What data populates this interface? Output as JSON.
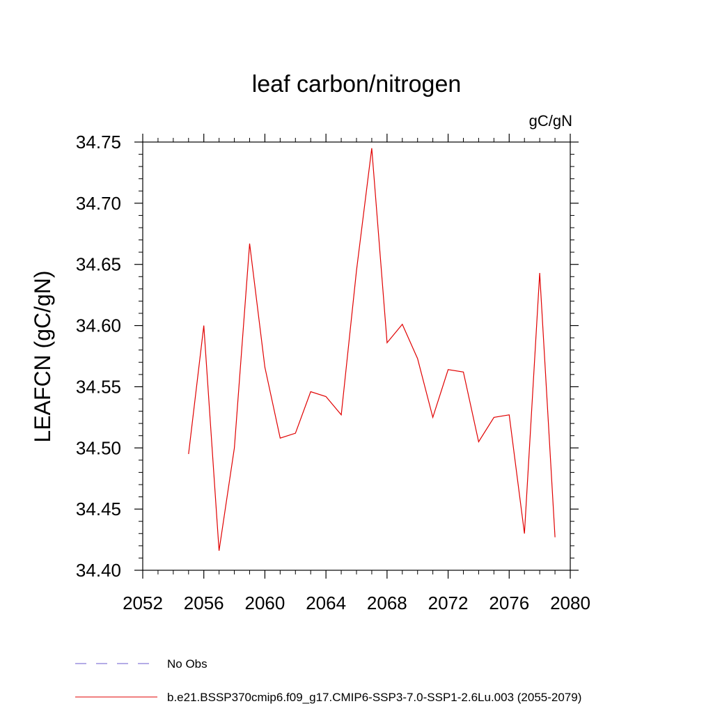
{
  "chart_data": {
    "type": "line",
    "title": "leaf carbon/nitrogen",
    "units": "gC/gN",
    "ylabel": "LEAFCN  (gC/gN)",
    "xlabel": "",
    "xlim": [
      2052,
      2080
    ],
    "ylim": [
      34.4,
      34.75
    ],
    "x_ticks": [
      2052,
      2056,
      2060,
      2064,
      2068,
      2072,
      2076,
      2080
    ],
    "x_tick_labels": [
      "2052",
      "2056",
      "2060",
      "2064",
      "2068",
      "2072",
      "2076",
      "2080"
    ],
    "y_ticks": [
      34.4,
      34.45,
      34.5,
      34.55,
      34.6,
      34.65,
      34.7,
      34.75
    ],
    "y_tick_labels": [
      "34.40",
      "34.45",
      "34.50",
      "34.55",
      "34.60",
      "34.65",
      "34.70",
      "34.75"
    ],
    "grid": false,
    "legend_position": "bottom",
    "legend": [
      {
        "label": "No Obs",
        "color": "#6a5acd",
        "style": "dashed"
      },
      {
        "label": "b.e21.BSSP370cmip6.f09_g17.CMIP6-SSP3-7.0-SSP1-2.6Lu.003 (2055-2079)",
        "color": "#e00000",
        "style": "solid"
      }
    ],
    "series": [
      {
        "name": "b.e21.BSSP370cmip6.f09_g17.CMIP6-SSP3-7.0-SSP1-2.6Lu.003 (2055-2079)",
        "color": "#e00000",
        "x": [
          2055,
          2056,
          2057,
          2058,
          2059,
          2060,
          2061,
          2062,
          2063,
          2064,
          2065,
          2066,
          2067,
          2068,
          2069,
          2070,
          2071,
          2072,
          2073,
          2074,
          2075,
          2076,
          2077,
          2078,
          2079
        ],
        "y": [
          34.495,
          34.6,
          34.416,
          34.5,
          34.667,
          34.566,
          34.508,
          34.512,
          34.546,
          34.542,
          34.527,
          34.645,
          34.745,
          34.586,
          34.601,
          34.573,
          34.525,
          34.564,
          34.562,
          34.505,
          34.525,
          34.527,
          34.43,
          34.643,
          34.427
        ]
      }
    ]
  }
}
